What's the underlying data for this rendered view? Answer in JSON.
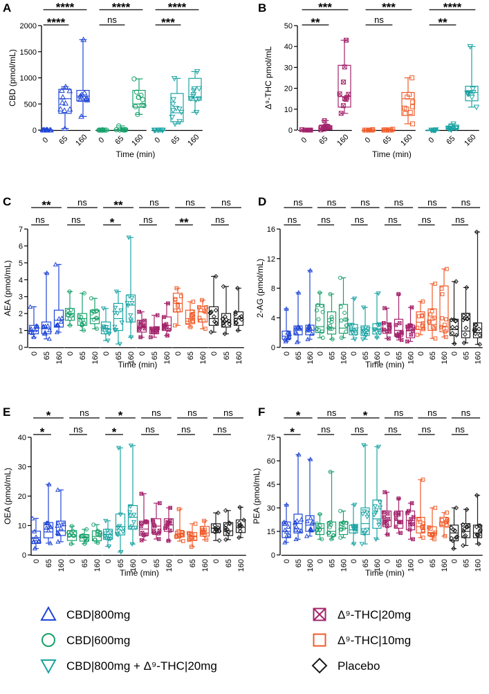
{
  "colors": {
    "CBD800": "#1f45d6",
    "CBD600": "#16a06a",
    "CBDTHC": "#1aa3a3",
    "THC20": "#a3236b",
    "THC10": "#f05a28",
    "Placebo": "#1a1a1a"
  },
  "legend": [
    {
      "key": "CBD800",
      "marker": "triangle-up",
      "label": "CBD|800mg"
    },
    {
      "key": "THC20",
      "marker": "square-x",
      "label": "Δ⁹-THC|20mg"
    },
    {
      "key": "CBD600",
      "marker": "circle",
      "label": "CBD|600mg"
    },
    {
      "key": "THC10",
      "marker": "square",
      "label": "Δ⁹-THC|10mg"
    },
    {
      "key": "CBDTHC",
      "marker": "triangle-down",
      "label": "CBD|800mg + Δ⁹-THC|20mg"
    },
    {
      "key": "Placebo",
      "marker": "diamond",
      "label": "Placebo"
    }
  ],
  "chart_data": [
    {
      "id": "A",
      "type": "box",
      "ylabel": "CBD (pmol/mL)",
      "xlabel": "Time (min)",
      "ylim": [
        0,
        2000
      ],
      "yticks": [
        0,
        500,
        1000,
        1500,
        2000
      ],
      "yticklabels": [
        "0",
        "500",
        "1000",
        "1500",
        "2000"
      ],
      "categories": [
        "0",
        "65",
        "160"
      ],
      "series": [
        {
          "key": "CBD800",
          "boxes": [
            [
              0,
              0,
              0,
              0,
              5
            ],
            [
              30,
              320,
              600,
              780,
              830
            ],
            [
              260,
              560,
              650,
              760,
              1730
            ]
          ]
        },
        {
          "key": "CBD600",
          "boxes": [
            [
              0,
              0,
              0,
              0,
              5
            ],
            [
              0,
              0,
              0,
              10,
              80
            ],
            [
              300,
              440,
              500,
              760,
              980
            ]
          ]
        },
        {
          "key": "CBDTHC",
          "boxes": [
            [
              0,
              0,
              0,
              0,
              5
            ],
            [
              120,
              160,
              330,
              700,
              990
            ],
            [
              340,
              570,
              620,
              990,
              1120
            ]
          ]
        }
      ],
      "sig_top": [
        "****",
        "****",
        "****"
      ],
      "sig_low": [
        "****",
        "ns",
        "***"
      ]
    },
    {
      "id": "B",
      "type": "box",
      "ylabel": "Δ⁹-THC pmol/mL",
      "xlabel": "Time (min)",
      "ylim": [
        0,
        50
      ],
      "yticks": [
        0,
        10,
        20,
        30,
        40,
        50
      ],
      "yticklabels": [
        "0",
        "10",
        "20",
        "30",
        "40",
        "50"
      ],
      "categories": [
        "0",
        "65",
        "160"
      ],
      "series": [
        {
          "key": "THC20",
          "boxes": [
            [
              0,
              0,
              0,
              0,
              0.2
            ],
            [
              0.1,
              0.4,
              1,
              2,
              4.5
            ],
            [
              8,
              11,
              16,
              31,
              43
            ]
          ]
        },
        {
          "key": "THC10",
          "boxes": [
            [
              0,
              0,
              0,
              0,
              0.2
            ],
            [
              0,
              0,
              0,
              0.1,
              0.4
            ],
            [
              3,
              7,
              15,
              18,
              25
            ]
          ]
        },
        {
          "key": "CBDTHC",
          "boxes": [
            [
              0,
              0,
              0,
              0,
              0.2
            ],
            [
              0.1,
              0.4,
              0.8,
              1.8,
              3
            ],
            [
              11,
              14,
              18,
              21,
              40
            ]
          ]
        }
      ],
      "sig_top": [
        "***",
        "***",
        "****"
      ],
      "sig_low": [
        "**",
        "ns",
        "**"
      ]
    },
    {
      "id": "C",
      "type": "box",
      "ylabel": "AEA (pmol/mL)",
      "xlabel": "Time (min)",
      "ylim": [
        0,
        7
      ],
      "yticks": [
        0,
        1,
        2,
        3,
        4,
        5,
        6,
        7
      ],
      "yticklabels": [
        "0",
        "1",
        "2",
        "3",
        "4",
        "5",
        "6",
        "7"
      ],
      "categories": [
        "0",
        "65",
        "160"
      ],
      "series": [
        {
          "key": "CBD800",
          "boxes": [
            [
              0.6,
              0.8,
              1.0,
              1.3,
              2.4
            ],
            [
              0.5,
              0.8,
              1.1,
              1.5,
              4.4
            ],
            [
              0.9,
              1.2,
              1.6,
              2.2,
              4.9
            ]
          ]
        },
        {
          "key": "CBD600",
          "boxes": [
            [
              1.3,
              1.6,
              2.0,
              2.3,
              3.3
            ],
            [
              1.0,
              1.3,
              1.7,
              2.0,
              3.2
            ],
            [
              1.1,
              1.4,
              1.7,
              2.2,
              2.9
            ]
          ]
        },
        {
          "key": "CBDTHC",
          "boxes": [
            [
              0.4,
              0.8,
              1.1,
              1.5,
              2.3
            ],
            [
              0.2,
              1.0,
              1.7,
              2.6,
              3.3
            ],
            [
              0.6,
              1.5,
              2.5,
              3.1,
              6.5
            ]
          ]
        },
        {
          "key": "THC20",
          "boxes": [
            [
              0.6,
              0.9,
              1.2,
              1.6,
              2.1
            ],
            [
              0.6,
              0.8,
              0.9,
              1.2,
              1.9
            ],
            [
              0.7,
              1.0,
              1.3,
              1.8,
              2.6
            ]
          ]
        },
        {
          "key": "THC10",
          "boxes": [
            [
              1.3,
              2.1,
              2.6,
              3.2,
              3.5
            ],
            [
              1.2,
              1.4,
              1.7,
              2.2,
              2.7
            ],
            [
              1.1,
              1.5,
              2.1,
              2.4,
              2.8
            ]
          ]
        },
        {
          "key": "Placebo",
          "boxes": [
            [
              0.9,
              1.3,
              1.7,
              2.4,
              4.2
            ],
            [
              0.8,
              1.2,
              1.5,
              2.0,
              3.6
            ],
            [
              1.0,
              1.3,
              1.7,
              2.1,
              3.5
            ]
          ]
        }
      ],
      "sig_top": [
        "**",
        "ns",
        "**",
        "ns",
        "ns",
        "ns"
      ],
      "sig_low": [
        "ns",
        "ns",
        "*",
        "ns",
        "**",
        "ns"
      ]
    },
    {
      "id": "D",
      "type": "box",
      "ylabel": "2-AG (pmol/mL)",
      "xlabel": "Time (min)",
      "ylim": [
        0,
        16
      ],
      "yticks": [
        0,
        4,
        8,
        12,
        16
      ],
      "yticklabels": [
        "0",
        "4",
        "8",
        "12",
        "16"
      ],
      "categories": [
        "0",
        "65",
        "160"
      ],
      "series": [
        {
          "key": "CBD800",
          "boxes": [
            [
              0.8,
              1.1,
              1.5,
              2.2,
              5.2
            ],
            [
              0.7,
              1.7,
              2.5,
              2.9,
              7.4
            ],
            [
              1.1,
              1.7,
              2.3,
              3.0,
              10.4
            ]
          ]
        },
        {
          "key": "CBD600",
          "boxes": [
            [
              1.3,
              2.0,
              2.8,
              5.8,
              7.4
            ],
            [
              1.1,
              1.8,
              2.6,
              4.8,
              7.2
            ],
            [
              1.3,
              1.9,
              2.6,
              5.8,
              9.4
            ]
          ]
        },
        {
          "key": "CBDTHC",
          "boxes": [
            [
              1.1,
              1.7,
              2.3,
              3.1,
              6.6
            ],
            [
              1.1,
              1.6,
              2.2,
              2.9,
              5.4
            ],
            [
              1.3,
              1.8,
              2.4,
              3.2,
              7.3
            ]
          ]
        },
        {
          "key": "THC20",
          "boxes": [
            [
              1.2,
              1.9,
              2.3,
              3.3,
              5.3
            ],
            [
              1.0,
              1.5,
              2.3,
              3.8,
              7.2
            ],
            [
              0.8,
              1.3,
              2.3,
              3.0,
              5.4
            ]
          ]
        },
        {
          "key": "THC10",
          "boxes": [
            [
              1.7,
              2.4,
              3.4,
              4.8,
              6.2
            ],
            [
              1.2,
              2.3,
              3.1,
              5.2,
              8.6
            ],
            [
              1.4,
              2.1,
              2.8,
              8.3,
              10.6
            ]
          ]
        },
        {
          "key": "Placebo",
          "boxes": [
            [
              0.5,
              1.6,
              2.4,
              3.8,
              8.9
            ],
            [
              0.6,
              1.3,
              2.2,
              4.6,
              8.1
            ],
            [
              0.4,
              1.3,
              2.0,
              3.3,
              15.6
            ]
          ]
        }
      ],
      "sig_top": [
        "ns",
        "ns",
        "ns",
        "ns",
        "ns",
        "ns"
      ],
      "sig_low": [
        "ns",
        "ns",
        "ns",
        "ns",
        "ns",
        "ns"
      ]
    },
    {
      "id": "E",
      "type": "box",
      "ylabel": "OEA (pmol/mL)",
      "xlabel": "Time (min)",
      "ylim": [
        0,
        40
      ],
      "yticks": [
        0,
        10,
        20,
        30,
        40
      ],
      "yticklabels": [
        "0",
        "10",
        "20",
        "30",
        "40"
      ],
      "categories": [
        "0",
        "65",
        "160"
      ],
      "series": [
        {
          "key": "CBD800",
          "boxes": [
            [
              2.2,
              3.9,
              5.9,
              8.1,
              12.4
            ],
            [
              4.0,
              5.8,
              7.8,
              11.0,
              24.0
            ],
            [
              4.5,
              6.6,
              8.2,
              11.5,
              22.1
            ]
          ]
        },
        {
          "key": "CBD600",
          "boxes": [
            [
              3.7,
              4.9,
              6.3,
              8.3,
              9.8
            ],
            [
              3.8,
              4.7,
              5.8,
              6.9,
              8.7
            ],
            [
              4.1,
              4.8,
              6.3,
              8.2,
              10.3
            ]
          ]
        },
        {
          "key": "CBDTHC",
          "boxes": [
            [
              2.9,
              5.3,
              7.0,
              8.7,
              11.6
            ],
            [
              1.0,
              6.8,
              9.6,
              13.9,
              36.4
            ],
            [
              3.7,
              8.8,
              12.8,
              16.8,
              37.2
            ]
          ]
        },
        {
          "key": "THC20",
          "boxes": [
            [
              5.0,
              6.6,
              8.8,
              11.5,
              20.8
            ],
            [
              5.4,
              7.3,
              9.8,
              12.3,
              17.6
            ],
            [
              4.8,
              8.0,
              10.2,
              12.3,
              16.0
            ]
          ]
        },
        {
          "key": "THC10",
          "boxes": [
            [
              4.7,
              6.1,
              7.1,
              8.1,
              15.6
            ],
            [
              2.8,
              4.9,
              6.4,
              7.6,
              10.6
            ],
            [
              5.2,
              6.4,
              7.5,
              9.7,
              11.6
            ]
          ]
        },
        {
          "key": "Placebo",
          "boxes": [
            [
              4.9,
              7.6,
              9.1,
              10.6,
              14.3
            ],
            [
              5.2,
              6.6,
              8.2,
              11.0,
              15.1
            ],
            [
              5.9,
              7.6,
              9.4,
              11.9,
              16.2
            ]
          ]
        }
      ],
      "sig_top": [
        "*",
        "ns",
        "*",
        "ns",
        "ns",
        "ns"
      ],
      "sig_low": [
        "*",
        "ns",
        "*",
        "ns",
        "ns",
        "ns"
      ]
    },
    {
      "id": "F",
      "type": "box",
      "ylabel": "PEA (pmol/mL)",
      "xlabel": "Time (min)",
      "ylim": [
        0,
        75
      ],
      "yticks": [
        0,
        15,
        30,
        45,
        60,
        75
      ],
      "yticklabels": [
        "0",
        "15",
        "30",
        "45",
        "60",
        "75"
      ],
      "categories": [
        "0",
        "65",
        "160"
      ],
      "series": [
        {
          "key": "CBD800",
          "boxes": [
            [
              8,
              11,
              15,
              21,
              32
            ],
            [
              10,
              14,
              20,
              26,
              64
            ],
            [
              12,
              15,
              19,
              25,
              61
            ]
          ]
        },
        {
          "key": "CBD600",
          "boxes": [
            [
              10,
              13,
              17,
              20,
              26
            ],
            [
              10,
              12,
              15,
              21,
              53
            ],
            [
              11,
              13,
              17,
              21,
              28
            ]
          ]
        },
        {
          "key": "CBDTHC",
          "boxes": [
            [
              7,
              14,
              16,
              19,
              32
            ],
            [
              7,
              13,
              20,
              30,
              70
            ],
            [
              10,
              17,
              23,
              35,
              69
            ]
          ]
        },
        {
          "key": "THC20",
          "boxes": [
            [
              13,
              18,
              22,
              28,
              40
            ],
            [
              14,
              17,
              22,
              28,
              36
            ],
            [
              10,
              16,
              22,
              28,
              33
            ]
          ]
        },
        {
          "key": "THC10",
          "boxes": [
            [
              11,
              14,
              18,
              24,
              48
            ],
            [
              10,
              12,
              14,
              18,
              30
            ],
            [
              12,
              18,
              21,
              24,
              27
            ]
          ]
        },
        {
          "key": "Placebo",
          "boxes": [
            [
              4,
              9,
              14,
              19,
              30
            ],
            [
              6,
              11,
              15,
              20,
              29
            ],
            [
              7,
              11,
              14,
              19,
              38
            ]
          ]
        }
      ],
      "sig_top": [
        "*",
        "ns",
        "*",
        "ns",
        "ns",
        "ns"
      ],
      "sig_low": [
        "*",
        "ns",
        "ns",
        "ns",
        "ns",
        "ns"
      ]
    }
  ]
}
